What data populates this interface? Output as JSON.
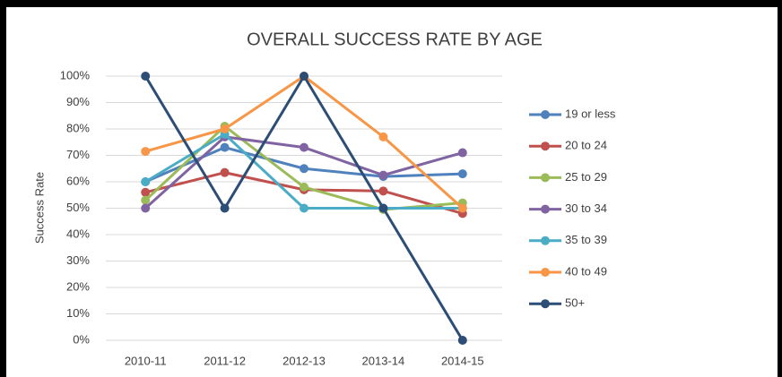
{
  "chart_data": {
    "type": "line",
    "title": "OVERALL SUCCESS RATE BY AGE",
    "y_label": "Success Rate",
    "categories": [
      "2010-11",
      "2011-12",
      "2012-13",
      "2013-14",
      "2014-15"
    ],
    "series": [
      {
        "name": "19 or less",
        "color": "#4f81bd",
        "values": [
          60,
          73,
          65,
          62,
          63
        ]
      },
      {
        "name": "20 to 24",
        "color": "#c0504d",
        "values": [
          56,
          63.5,
          57,
          56.5,
          48
        ]
      },
      {
        "name": "25 to 29",
        "color": "#9bbb59",
        "values": [
          53,
          81,
          58,
          49.5,
          52
        ]
      },
      {
        "name": "30 to 34",
        "color": "#8064a2",
        "values": [
          50,
          77,
          73,
          62.5,
          71
        ]
      },
      {
        "name": "35 to 39",
        "color": "#4bacc6",
        "values": [
          60,
          78,
          50,
          50,
          50
        ]
      },
      {
        "name": "40 to 49",
        "color": "#f79646",
        "values": [
          71.5,
          80,
          100,
          77,
          50
        ]
      },
      {
        "name": "50+",
        "color": "#2c4d75",
        "values": [
          100,
          50,
          100,
          50,
          0
        ]
      }
    ],
    "ylim": [
      0,
      100
    ],
    "yticks": [
      {
        "value": 0,
        "label": "0%"
      },
      {
        "value": 10,
        "label": "10%"
      },
      {
        "value": 20,
        "label": "20%"
      },
      {
        "value": 30,
        "label": "30%"
      },
      {
        "value": 40,
        "label": "40%"
      },
      {
        "value": 50,
        "label": "50%"
      },
      {
        "value": 60,
        "label": "60%"
      },
      {
        "value": 70,
        "label": "70%"
      },
      {
        "value": 80,
        "label": "80%"
      },
      {
        "value": 90,
        "label": "90%"
      },
      {
        "value": 100,
        "label": "100%"
      }
    ],
    "grid": true,
    "legend": "right"
  }
}
